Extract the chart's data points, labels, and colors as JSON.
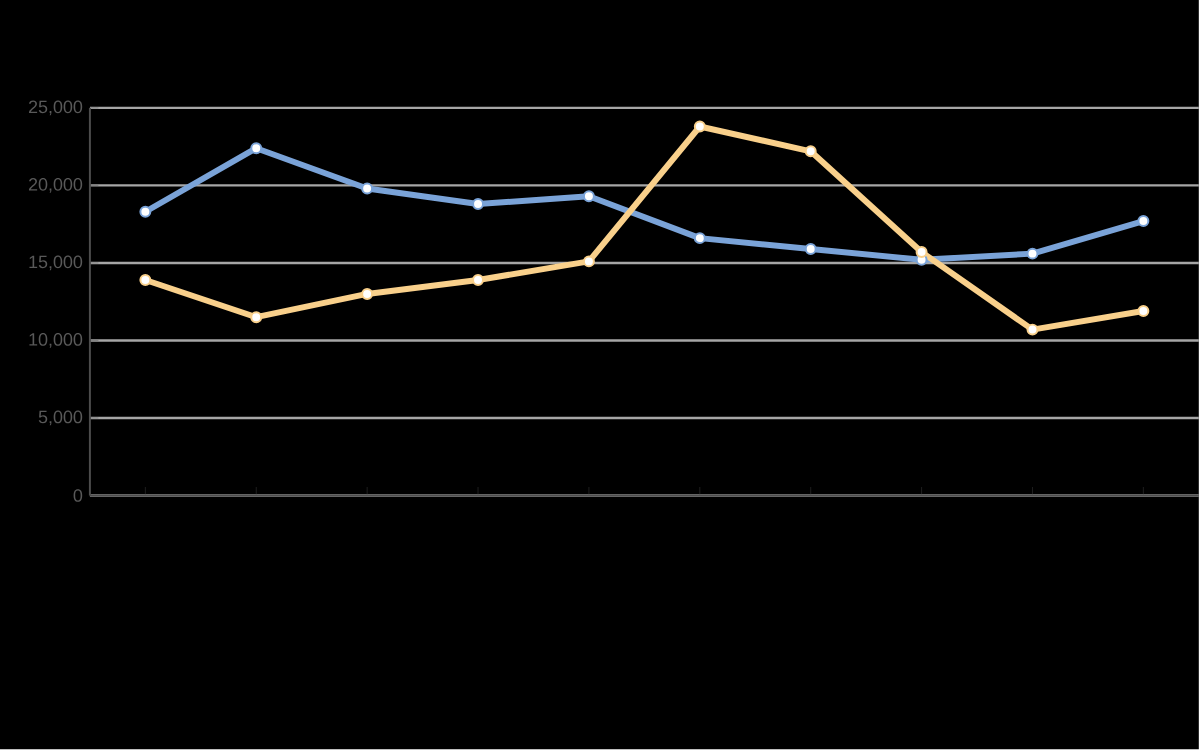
{
  "chart_data": {
    "type": "line",
    "categories": [
      null,
      null,
      null,
      null,
      null,
      null,
      null,
      null,
      null,
      null
    ],
    "series": [
      {
        "color": "#7aa3d8",
        "values": [
          18300,
          22400,
          19800,
          18800,
          19300,
          16600,
          15900,
          15200,
          15600,
          17700
        ]
      },
      {
        "color": "#f9d08b",
        "values": [
          13900,
          11500,
          13000,
          13900,
          15100,
          23800,
          22200,
          15700,
          10700,
          11900
        ]
      }
    ],
    "ylim": [
      0,
      25000
    ],
    "yticks": [
      {
        "value": 0,
        "label": "0"
      },
      {
        "value": 5000,
        "label": "5,000"
      },
      {
        "value": 10000,
        "label": "10,000"
      },
      {
        "value": 15000,
        "label": "15,000"
      },
      {
        "value": 20000,
        "label": "20,000"
      },
      {
        "value": 25000,
        "label": "25,000"
      }
    ],
    "grid": "y",
    "marker": "circle",
    "line_style": "solid"
  }
}
